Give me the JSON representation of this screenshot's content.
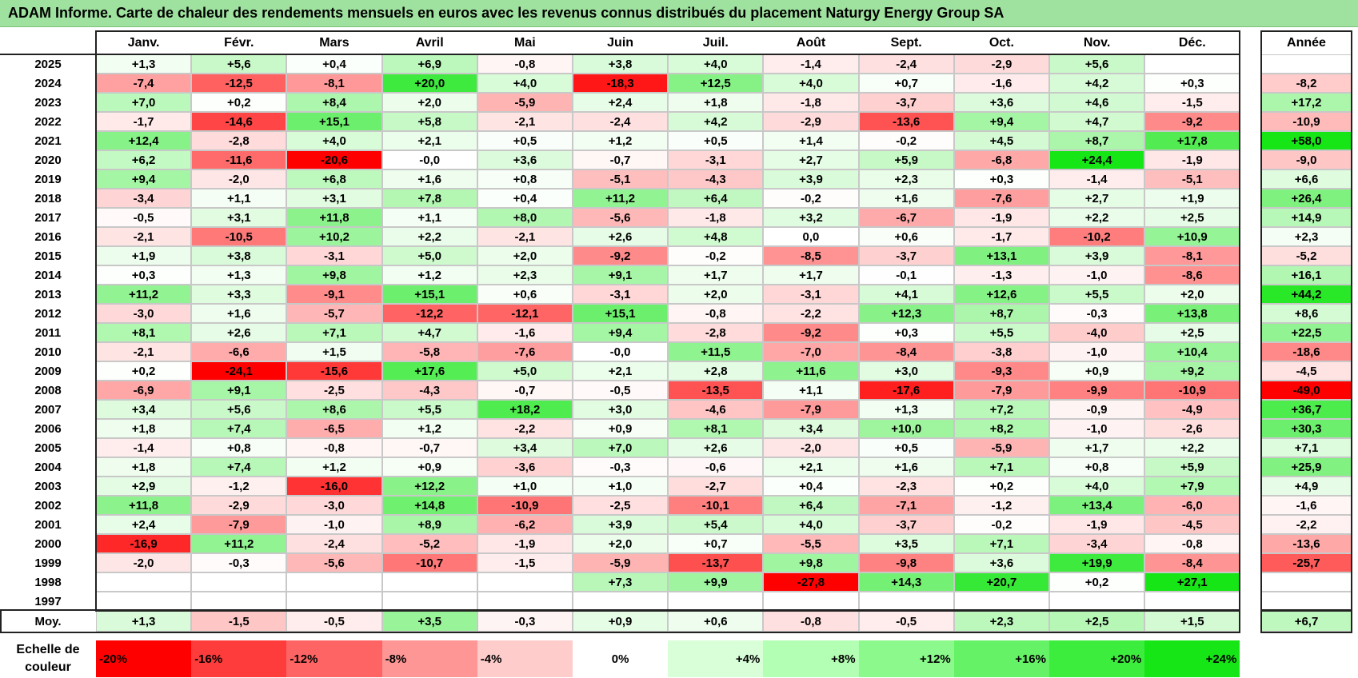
{
  "title": "ADAM Informe. Carte de chaleur des rendements mensuels en euros avec les revenus connus distribués du placement Naturgy Energy Group SA",
  "chart_data": {
    "type": "heatmap",
    "title": "ADAM Informe. Carte de chaleur des rendements mensuels en euros avec les revenus connus distribués du placement Naturgy Energy Group SA",
    "columns": [
      "Janv.",
      "Févr.",
      "Mars",
      "Avril",
      "Mai",
      "Juin",
      "Juil.",
      "Août",
      "Sept.",
      "Oct.",
      "Nov.",
      "Déc."
    ],
    "year_column": "Année",
    "rows": [
      {
        "year": "2025",
        "values": [
          "+1,3",
          "+5,6",
          "+0,4",
          "+6,9",
          "-0,8",
          "+3,8",
          "+4,0",
          "-1,4",
          "-2,4",
          "-2,9",
          "+5,6",
          ""
        ],
        "annual": ""
      },
      {
        "year": "2024",
        "values": [
          "-7,4",
          "-12,5",
          "-8,1",
          "+20,0",
          "+4,0",
          "-18,3",
          "+12,5",
          "+4,0",
          "+0,7",
          "-1,6",
          "+4,2",
          "+0,3"
        ],
        "annual": "-8,2"
      },
      {
        "year": "2023",
        "values": [
          "+7,0",
          "+0,2",
          "+8,4",
          "+2,0",
          "-5,9",
          "+2,4",
          "+1,8",
          "-1,8",
          "-3,7",
          "+3,6",
          "+4,6",
          "-1,5"
        ],
        "annual": "+17,2"
      },
      {
        "year": "2022",
        "values": [
          "-1,7",
          "-14,6",
          "+15,1",
          "+5,8",
          "-2,1",
          "-2,4",
          "+4,2",
          "-2,9",
          "-13,6",
          "+9,4",
          "+4,7",
          "-9,2"
        ],
        "annual": "-10,9"
      },
      {
        "year": "2021",
        "values": [
          "+12,4",
          "-2,8",
          "+4,0",
          "+2,1",
          "+0,5",
          "+1,2",
          "+0,5",
          "+1,4",
          "-0,2",
          "+4,5",
          "+8,7",
          "+17,8"
        ],
        "annual": "+58,0"
      },
      {
        "year": "2020",
        "values": [
          "+6,2",
          "-11,6",
          "-20,6",
          "-0,0",
          "+3,6",
          "-0,7",
          "-3,1",
          "+2,7",
          "+5,9",
          "-6,8",
          "+24,4",
          "-1,9"
        ],
        "annual": "-9,0"
      },
      {
        "year": "2019",
        "values": [
          "+9,4",
          "-2,0",
          "+6,8",
          "+1,6",
          "+0,8",
          "-5,1",
          "-4,3",
          "+3,9",
          "+2,3",
          "+0,3",
          "-1,4",
          "-5,1"
        ],
        "annual": "+6,6"
      },
      {
        "year": "2018",
        "values": [
          "-3,4",
          "+1,1",
          "+3,1",
          "+7,8",
          "+0,4",
          "+11,2",
          "+6,4",
          "-0,2",
          "+1,6",
          "-7,6",
          "+2,7",
          "+1,9"
        ],
        "annual": "+26,4"
      },
      {
        "year": "2017",
        "values": [
          "-0,5",
          "+3,1",
          "+11,8",
          "+1,1",
          "+8,0",
          "-5,6",
          "-1,8",
          "+3,2",
          "-6,7",
          "-1,9",
          "+2,2",
          "+2,5"
        ],
        "annual": "+14,9"
      },
      {
        "year": "2016",
        "values": [
          "-2,1",
          "-10,5",
          "+10,2",
          "+2,2",
          "-2,1",
          "+2,6",
          "+4,8",
          "0,0",
          "+0,6",
          "-1,7",
          "-10,2",
          "+10,9"
        ],
        "annual": "+2,3"
      },
      {
        "year": "2015",
        "values": [
          "+1,9",
          "+3,8",
          "-3,1",
          "+5,0",
          "+2,0",
          "-9,2",
          "-0,2",
          "-8,5",
          "-3,7",
          "+13,1",
          "+3,9",
          "-8,1"
        ],
        "annual": "-5,2"
      },
      {
        "year": "2014",
        "values": [
          "+0,3",
          "+1,3",
          "+9,8",
          "+1,2",
          "+2,3",
          "+9,1",
          "+1,7",
          "+1,7",
          "-0,1",
          "-1,3",
          "-1,0",
          "-8,6"
        ],
        "annual": "+16,1"
      },
      {
        "year": "2013",
        "values": [
          "+11,2",
          "+3,3",
          "-9,1",
          "+15,1",
          "+0,6",
          "-3,1",
          "+2,0",
          "-3,1",
          "+4,1",
          "+12,6",
          "+5,5",
          "+2,0"
        ],
        "annual": "+44,2"
      },
      {
        "year": "2012",
        "values": [
          "-3,0",
          "+1,6",
          "-5,7",
          "-12,2",
          "-12,1",
          "+15,1",
          "-0,8",
          "-2,2",
          "+12,3",
          "+8,7",
          "-0,3",
          "+13,8"
        ],
        "annual": "+8,6"
      },
      {
        "year": "2011",
        "values": [
          "+8,1",
          "+2,6",
          "+7,1",
          "+4,7",
          "-1,6",
          "+9,4",
          "-2,8",
          "-9,2",
          "+0,3",
          "+5,5",
          "-4,0",
          "+2,5"
        ],
        "annual": "+22,5"
      },
      {
        "year": "2010",
        "values": [
          "-2,1",
          "-6,6",
          "+1,5",
          "-5,8",
          "-7,6",
          "-0,0",
          "+11,5",
          "-7,0",
          "-8,4",
          "-3,8",
          "-1,0",
          "+10,4"
        ],
        "annual": "-18,6"
      },
      {
        "year": "2009",
        "values": [
          "+0,2",
          "-24,1",
          "-15,6",
          "+17,6",
          "+5,0",
          "+2,1",
          "+2,8",
          "+11,6",
          "+3,0",
          "-9,3",
          "+0,9",
          "+9,2"
        ],
        "annual": "-4,5"
      },
      {
        "year": "2008",
        "values": [
          "-6,9",
          "+9,1",
          "-2,5",
          "-4,3",
          "-0,7",
          "-0,5",
          "-13,5",
          "+1,1",
          "-17,6",
          "-7,9",
          "-9,9",
          "-10,9"
        ],
        "annual": "-49,0"
      },
      {
        "year": "2007",
        "values": [
          "+3,4",
          "+5,6",
          "+8,6",
          "+5,5",
          "+18,2",
          "+3,0",
          "-4,6",
          "-7,9",
          "+1,3",
          "+7,2",
          "-0,9",
          "-4,9"
        ],
        "annual": "+36,7"
      },
      {
        "year": "2006",
        "values": [
          "+1,8",
          "+7,4",
          "-6,5",
          "+1,2",
          "-2,2",
          "+0,9",
          "+8,1",
          "+3,4",
          "+10,0",
          "+8,2",
          "-1,0",
          "-2,6"
        ],
        "annual": "+30,3"
      },
      {
        "year": "2005",
        "values": [
          "-1,4",
          "+0,8",
          "-0,8",
          "-0,7",
          "+3,4",
          "+7,0",
          "+2,6",
          "-2,0",
          "+0,5",
          "-5,9",
          "+1,7",
          "+2,2"
        ],
        "annual": "+7,1"
      },
      {
        "year": "2004",
        "values": [
          "+1,8",
          "+7,4",
          "+1,2",
          "+0,9",
          "-3,6",
          "-0,3",
          "-0,6",
          "+2,1",
          "+1,6",
          "+7,1",
          "+0,8",
          "+5,9"
        ],
        "annual": "+25,9"
      },
      {
        "year": "2003",
        "values": [
          "+2,9",
          "-1,2",
          "-16,0",
          "+12,2",
          "+1,0",
          "+1,0",
          "-2,7",
          "+0,4",
          "-2,3",
          "+0,2",
          "+4,0",
          "+7,9"
        ],
        "annual": "+4,9"
      },
      {
        "year": "2002",
        "values": [
          "+11,8",
          "-2,9",
          "-3,0",
          "+14,8",
          "-10,9",
          "-2,5",
          "-10,1",
          "+6,4",
          "-7,1",
          "-1,2",
          "+13,4",
          "-6,0"
        ],
        "annual": "-1,6"
      },
      {
        "year": "2001",
        "values": [
          "+2,4",
          "-7,9",
          "-1,0",
          "+8,9",
          "-6,2",
          "+3,9",
          "+5,4",
          "+4,0",
          "-3,7",
          "-0,2",
          "-1,9",
          "-4,5"
        ],
        "annual": "-2,2"
      },
      {
        "year": "2000",
        "values": [
          "-16,9",
          "+11,2",
          "-2,4",
          "-5,2",
          "-1,9",
          "+2,0",
          "+0,7",
          "-5,5",
          "+3,5",
          "+7,1",
          "-3,4",
          "-0,8"
        ],
        "annual": "-13,6"
      },
      {
        "year": "1999",
        "values": [
          "-2,0",
          "-0,3",
          "-5,6",
          "-10,7",
          "-1,5",
          "-5,9",
          "-13,7",
          "+9,8",
          "-9,8",
          "+3,6",
          "+19,9",
          "-8,4"
        ],
        "annual": "-25,7"
      },
      {
        "year": "1998",
        "values": [
          "",
          "",
          "",
          "",
          "",
          "+7,3",
          "+9,9",
          "-27,8",
          "+14,3",
          "+20,7",
          "+0,2",
          "+27,1"
        ],
        "annual": ""
      },
      {
        "year": "1997",
        "values": [
          "",
          "",
          "",
          "",
          "",
          "",
          "",
          "",
          "",
          "",
          "",
          ""
        ],
        "annual": ""
      }
    ],
    "average": {
      "label": "Moy.",
      "values": [
        "+1,3",
        "-1,5",
        "-0,5",
        "+3,5",
        "-0,3",
        "+0,9",
        "+0,6",
        "-0,8",
        "-0,5",
        "+2,3",
        "+2,5",
        "+1,5"
      ],
      "annual": "+6,7"
    },
    "color_scale": {
      "label": "Echelle de couleur",
      "steps": [
        {
          "label": "-20%",
          "color": "#ff0000"
        },
        {
          "label": "-16%",
          "color": "#ff3c3c"
        },
        {
          "label": "-12%",
          "color": "#ff6464"
        },
        {
          "label": "-8%",
          "color": "#ff9696"
        },
        {
          "label": "-4%",
          "color": "#ffcccc"
        },
        {
          "label": "0%",
          "color": "#ffffff"
        },
        {
          "label": "+4%",
          "color": "#d9ffd9"
        },
        {
          "label": "+8%",
          "color": "#b3ffb3"
        },
        {
          "label": "+12%",
          "color": "#8cf98c"
        },
        {
          "label": "+16%",
          "color": "#66f266"
        },
        {
          "label": "+20%",
          "color": "#3ded3d"
        },
        {
          "label": "+24%",
          "color": "#16e616"
        }
      ]
    }
  }
}
